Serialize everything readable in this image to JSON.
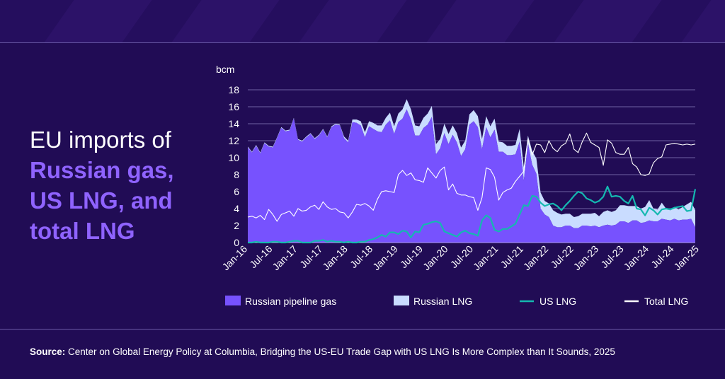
{
  "headline": {
    "line1": "EU imports of",
    "line2": "Russian gas,",
    "line3": "US LNG, and",
    "line4": "total LNG"
  },
  "source": {
    "label": "Source:",
    "text": "Center on Global Energy Policy at Columbia, Bridging the US-EU Trade Gap with US LNG Is More Complex than It Sounds, 2025"
  },
  "colors": {
    "background": "#210c55",
    "pipeline": "#7752fe",
    "russian_lng": "#c9dcff",
    "us_lng": "#14b8b0",
    "total_lng": "#ffffff",
    "accent_text": "#8f63ff"
  },
  "chart_data": {
    "type": "area",
    "ylabel": "bcm",
    "ylim": [
      0,
      18
    ],
    "yticks": [
      0,
      2,
      4,
      6,
      8,
      10,
      12,
      14,
      16,
      18
    ],
    "x_start": "Jan-16",
    "x_end": "Jan-25",
    "xtick_labels": [
      "Jan-16",
      "Jul-16",
      "Jan-17",
      "Jul-17",
      "Jan-18",
      "Jul-18",
      "Jan-19",
      "Jul-19",
      "Jan-20",
      "Jul-20",
      "Jan-21",
      "Jul-21",
      "Jan-22",
      "Jul-22",
      "Jan-23",
      "Jul-23",
      "Jan-24",
      "Jul-24",
      "Jan-25"
    ],
    "grid": true,
    "legend_position": "bottom",
    "series": [
      {
        "name": "Russian pipeline gas",
        "kind": "stacked-area",
        "values": [
          11.2,
          10.6,
          11.4,
          10.5,
          11.7,
          11.3,
          11.2,
          12.3,
          13.5,
          13.1,
          13.2,
          14.6,
          12.1,
          11.9,
          12.4,
          12.8,
          12.2,
          12.6,
          13.3,
          12.4,
          13.6,
          13.9,
          13.8,
          12.3,
          11.8,
          14.2,
          14.1,
          13.8,
          12.4,
          13.7,
          13.4,
          13.1,
          13.0,
          13.9,
          14.4,
          12.8,
          14.2,
          14.6,
          15.7,
          14.5,
          12.6,
          12.6,
          13.5,
          13.9,
          14.8,
          10.4,
          11.1,
          12.9,
          11.6,
          12.7,
          11.8,
          10.2,
          11.0,
          13.9,
          14.3,
          13.6,
          11.0,
          13.6,
          12.4,
          13.3,
          10.7,
          10.7,
          10.3,
          10.3,
          10.4,
          11.9,
          7.3,
          11.7,
          9.2,
          8.1,
          4.0,
          3.3,
          3.0,
          2.0,
          1.8,
          1.8,
          2.0,
          2.0,
          1.7,
          1.7,
          2.0,
          2.0,
          1.9,
          2.0,
          1.8,
          2.0,
          2.1,
          2.0,
          2.1,
          2.5,
          2.5,
          2.3,
          2.6,
          2.6,
          2.3,
          2.4,
          2.6,
          2.5,
          2.5,
          2.8,
          2.7,
          2.6,
          2.8,
          2.6,
          2.7,
          2.7,
          2.8,
          1.8
        ]
      },
      {
        "name": "Russian LNG",
        "kind": "stacked-area",
        "values": [
          0.1,
          0.1,
          0.1,
          0.1,
          0.1,
          0.1,
          0.1,
          0.1,
          0.1,
          0.1,
          0.1,
          0.1,
          0.1,
          0.1,
          0.1,
          0.1,
          0.1,
          0.1,
          0.1,
          0.1,
          0.1,
          0.1,
          0.1,
          0.2,
          0.2,
          0.3,
          0.4,
          0.5,
          0.6,
          0.6,
          0.7,
          0.7,
          0.8,
          0.8,
          0.9,
          0.9,
          1.0,
          1.1,
          1.2,
          1.2,
          1.2,
          1.1,
          1.2,
          1.3,
          1.3,
          1.2,
          1.1,
          1.1,
          1.2,
          1.1,
          1.1,
          1.0,
          1.0,
          1.2,
          1.3,
          1.3,
          1.2,
          1.3,
          1.3,
          1.3,
          1.2,
          1.1,
          1.1,
          1.1,
          1.1,
          1.5,
          1.6,
          0.9,
          1.6,
          1.8,
          1.9,
          1.6,
          1.6,
          1.8,
          1.7,
          1.5,
          1.4,
          1.4,
          1.3,
          1.4,
          1.4,
          1.4,
          1.5,
          1.5,
          1.3,
          1.6,
          1.7,
          1.6,
          1.7,
          1.9,
          1.9,
          2.0,
          1.7,
          1.7,
          1.7,
          1.8,
          2.4,
          1.5,
          1.4,
          1.9,
          1.3,
          1.2,
          1.4,
          1.3,
          1.5,
          1.8,
          2.0,
          2.0
        ]
      },
      {
        "name": "US LNG",
        "kind": "line",
        "values": [
          0.0,
          0.0,
          0.1,
          0.0,
          0.0,
          0.0,
          0.1,
          0.1,
          0.0,
          0.0,
          0.1,
          0.2,
          0.2,
          0.0,
          0.0,
          0.0,
          0.2,
          0.2,
          0.3,
          0.1,
          0.2,
          0.1,
          0.1,
          0.0,
          0.1,
          0.0,
          0.0,
          0.1,
          0.1,
          0.3,
          0.4,
          0.6,
          0.9,
          0.7,
          1.2,
          1.2,
          1.0,
          1.4,
          1.3,
          0.6,
          1.3,
          1.2,
          2.1,
          2.2,
          2.4,
          2.5,
          2.3,
          1.3,
          1.1,
          0.9,
          0.7,
          1.2,
          1.4,
          1.1,
          1.0,
          0.8,
          2.6,
          3.2,
          2.9,
          1.5,
          1.3,
          1.6,
          1.6,
          1.9,
          2.2,
          3.3,
          4.4,
          4.3,
          5.5,
          5.4,
          4.7,
          4.3,
          4.5,
          4.6,
          4.3,
          3.8,
          4.4,
          4.9,
          5.5,
          6.0,
          5.8,
          5.2,
          5.0,
          4.7,
          4.9,
          5.4,
          6.6,
          5.4,
          5.5,
          5.4,
          4.9,
          4.6,
          5.5,
          4.0,
          3.9,
          3.2,
          4.1,
          3.8,
          3.3,
          3.9,
          4.0,
          3.9,
          4.1,
          4.2,
          4.3,
          3.7,
          3.8,
          6.3
        ]
      },
      {
        "name": "Total LNG",
        "kind": "line",
        "values": [
          3.0,
          3.1,
          2.9,
          3.2,
          2.7,
          3.9,
          3.3,
          2.5,
          3.3,
          3.5,
          3.7,
          3.1,
          4.0,
          3.7,
          3.8,
          4.2,
          4.4,
          3.9,
          4.8,
          4.2,
          3.9,
          4.0,
          3.6,
          3.5,
          2.9,
          3.6,
          4.5,
          4.4,
          4.6,
          4.3,
          3.8,
          5.1,
          6.0,
          6.1,
          6.0,
          5.9,
          8.0,
          8.5,
          7.9,
          8.2,
          7.4,
          7.3,
          7.1,
          8.8,
          8.2,
          7.6,
          8.5,
          8.9,
          6.2,
          6.9,
          5.8,
          5.6,
          5.6,
          5.4,
          5.3,
          3.8,
          5.3,
          8.8,
          8.6,
          7.7,
          5.0,
          5.9,
          6.2,
          6.4,
          7.2,
          7.8,
          8.4,
          12.2,
          10.3,
          11.6,
          11.5,
          10.6,
          12.0,
          11.1,
          10.7,
          11.4,
          11.7,
          12.8,
          11.0,
          10.6,
          11.9,
          12.9,
          11.8,
          11.5,
          11.2,
          9.1,
          12.1,
          11.7,
          10.6,
          10.4,
          10.4,
          11.2,
          9.3,
          8.9,
          8.0,
          7.9,
          8.1,
          9.4,
          9.9,
          10.1,
          11.5,
          11.6,
          11.7,
          11.6,
          11.5,
          11.6,
          11.5,
          11.6
        ]
      }
    ]
  }
}
